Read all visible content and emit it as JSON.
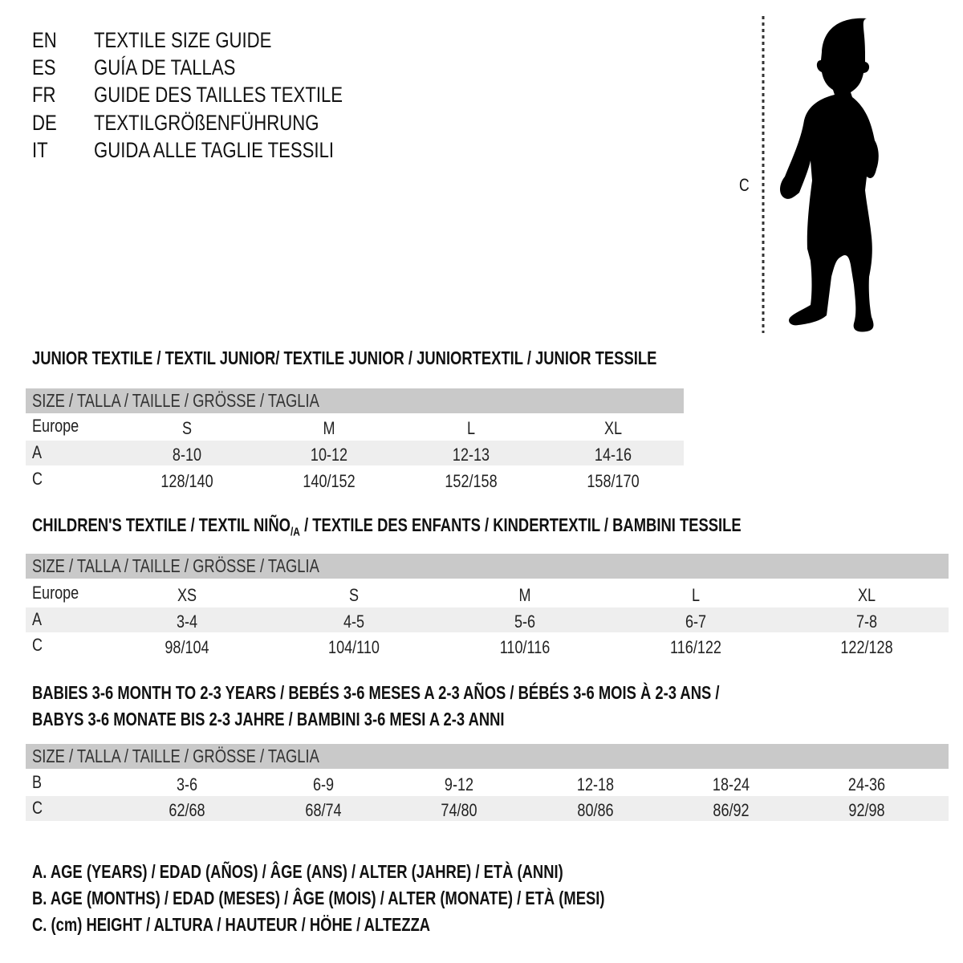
{
  "titles": [
    {
      "code": "EN",
      "text": "TEXTILE SIZE GUIDE"
    },
    {
      "code": "ES",
      "text": "GUÍA DE TALLAS"
    },
    {
      "code": "FR",
      "text": "GUIDE DES TAILLES TEXTILE"
    },
    {
      "code": "DE",
      "text": "TEXTILGRÖßENFÜHRUNG"
    },
    {
      "code": "IT",
      "text": "GUIDA ALLE TAGLIE TESSILI"
    }
  ],
  "figure": {
    "label": "C",
    "icon": "child-silhouette-icon"
  },
  "size_header": "SIZE / TALLA / TAILLE / GRÖSSE / TAGLIA",
  "junior": {
    "title": "JUNIOR TEXTILE / TEXTIL JUNIOR/ TEXTILE JUNIOR / JUNIORTEXTIL / JUNIOR TESSILE",
    "rows": [
      {
        "label": "Europe",
        "values": [
          "S",
          "M",
          "L",
          "XL"
        ]
      },
      {
        "label": "A",
        "values": [
          "8-10",
          "10-12",
          "12-13",
          "14-16"
        ]
      },
      {
        "label": "C",
        "values": [
          "128/140",
          "140/152",
          "152/158",
          "158/170"
        ]
      }
    ]
  },
  "children": {
    "title_a": "CHILDREN'S TEXTILE / TEXTIL NIÑO",
    "title_sub": "/A",
    "title_b": " / TEXTILE DES ENFANTS / KINDERTEXTIL / BAMBINI TESSILE",
    "rows": [
      {
        "label": "Europe",
        "values": [
          "XS",
          "S",
          "M",
          "L",
          "XL"
        ]
      },
      {
        "label": "A",
        "values": [
          "3-4",
          "4-5",
          "5-6",
          "6-7",
          "7-8"
        ]
      },
      {
        "label": "C",
        "values": [
          "98/104",
          "104/110",
          "110/116",
          "116/122",
          "122/128"
        ]
      }
    ]
  },
  "babies": {
    "title_1": "BABIES 3-6 MONTH TO 2-3 YEARS / BEBÉS 3-6 MESES A 2-3 AÑOS / BÉBÉS 3-6 MOIS À 2-3 ANS /",
    "title_2": "BABYS 3-6 MONATE BIS 2-3 JAHRE / BAMBINI 3-6 MESI A 2-3 ANNI",
    "rows": [
      {
        "label": "B",
        "values": [
          "3-6",
          "6-9",
          "9-12",
          "12-18",
          "18-24",
          "24-36"
        ]
      },
      {
        "label": "C",
        "values": [
          "62/68",
          "68/74",
          "74/80",
          "80/86",
          "86/92",
          "92/98"
        ]
      }
    ]
  },
  "legend": [
    "A. AGE (YEARS) / EDAD (AÑOS) / ÂGE (ANS) / ALTER (JAHRE) / ETÀ (ANNI)",
    "B. AGE (MONTHS) / EDAD (MESES) / ÂGE (MOIS) / ALTER (MONATE) / ETÀ (MESI)",
    "C. (cm) HEIGHT / ALTURA / HAUTEUR / HÖHE / ALTEZZA"
  ],
  "colors": {
    "header_bar": "#c9c9c9",
    "stripe": "#eeeeee",
    "text": "#111111"
  }
}
